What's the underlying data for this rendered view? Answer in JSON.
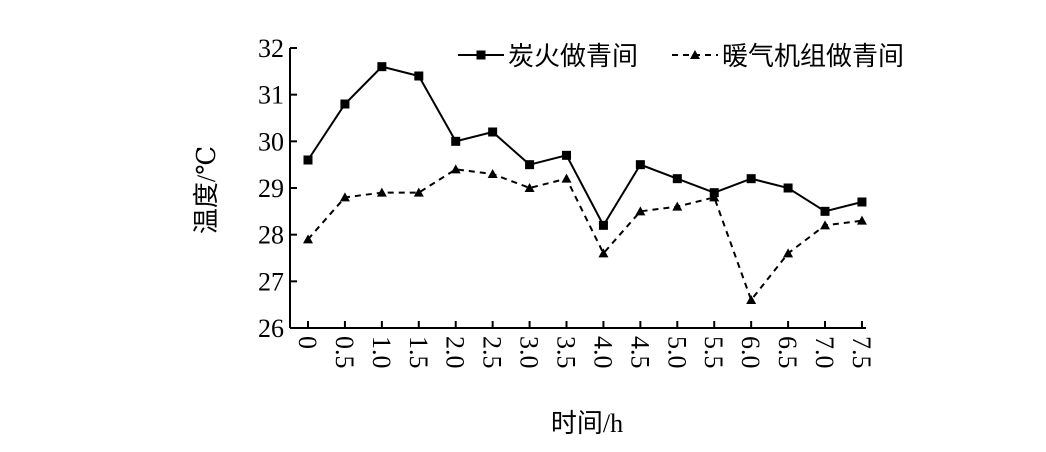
{
  "chart_data": {
    "type": "line",
    "xlabel": "时间/h",
    "ylabel": "温度/℃",
    "categories": [
      "0",
      "0.5",
      "1.0",
      "1.5",
      "2.0",
      "2.5",
      "3.0",
      "3.5",
      "4.0",
      "4.5",
      "5.0",
      "5.5",
      "6.0",
      "6.5",
      "7.0",
      "7.5"
    ],
    "series": [
      {
        "name": "炭火做青间",
        "color": "#000000",
        "dash": "solid",
        "marker": "square",
        "values": [
          29.6,
          30.8,
          31.6,
          31.4,
          30.0,
          30.2,
          29.5,
          29.7,
          28.2,
          29.5,
          29.2,
          28.9,
          29.2,
          29.0,
          28.5,
          28.7
        ]
      },
      {
        "name": "暖气机组做青间",
        "color": "#000000",
        "dash": "dashed",
        "marker": "triangle",
        "values": [
          27.9,
          28.8,
          28.9,
          28.9,
          29.4,
          29.3,
          29.0,
          29.2,
          27.6,
          28.5,
          28.6,
          28.8,
          26.6,
          27.6,
          28.2,
          28.3
        ]
      }
    ],
    "ylim": [
      26,
      32
    ],
    "yticks": [
      26,
      27,
      28,
      29,
      30,
      31,
      32
    ],
    "legend": "top"
  }
}
